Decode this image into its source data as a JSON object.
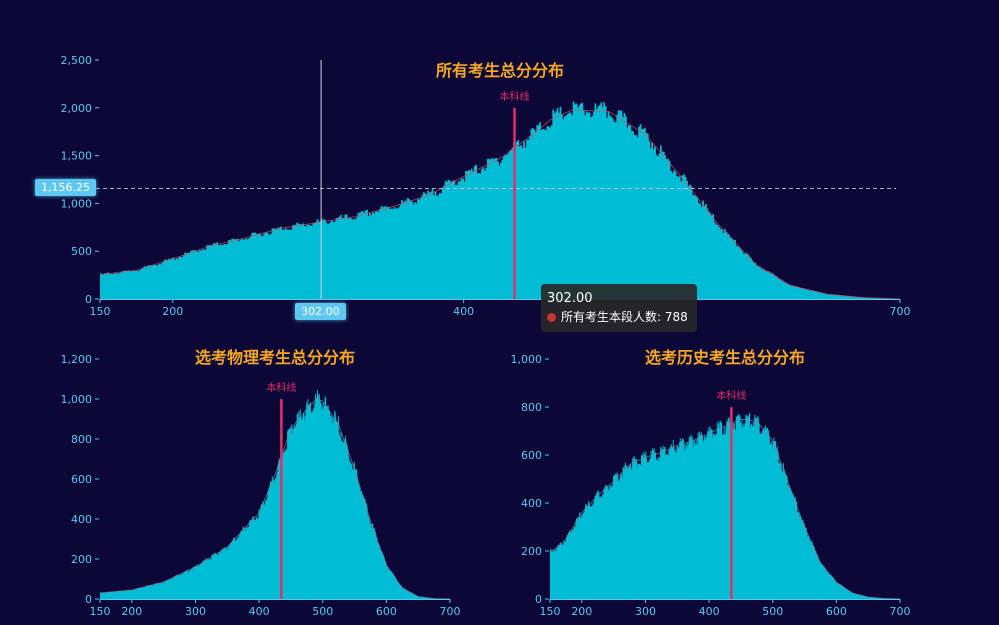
{
  "colors": {
    "background": "#0c0736",
    "fill": "#00bcd4",
    "outline": "#c25a6a",
    "pass_line": "#e0306a",
    "title": "#f5a623",
    "axis": "#58c8f0"
  },
  "chart_data": [
    {
      "type": "area",
      "title": "所有考生总分分布",
      "x_range": [
        150,
        700
      ],
      "xticks": [
        150,
        200,
        400,
        700
      ],
      "xtick_labels": [
        "150",
        "200",
        "400",
        "700"
      ],
      "ylim": [
        0,
        2500
      ],
      "yticks": [
        0,
        500,
        1000,
        1500,
        2000,
        2500
      ],
      "ytick_labels": [
        "0",
        "500",
        "1,000",
        "1,500",
        "2,000",
        "2,500"
      ],
      "x": [
        150,
        175,
        200,
        225,
        250,
        275,
        300,
        325,
        350,
        375,
        400,
        425,
        450,
        460,
        475,
        500,
        525,
        550,
        575,
        600,
        625,
        650,
        675,
        700
      ],
      "values": [
        255,
        300,
        420,
        550,
        640,
        740,
        800,
        860,
        960,
        1080,
        1280,
        1470,
        1750,
        1880,
        1980,
        1960,
        1720,
        1270,
        780,
        370,
        140,
        50,
        15,
        0
      ],
      "pass_line": {
        "x": 435,
        "height": 2000,
        "label": "本科线"
      },
      "crosshair": {
        "x": 302,
        "y": 1156.25,
        "x_label": "302.00",
        "y_label": "1,156.25"
      },
      "tooltip": {
        "title": "302.00",
        "series": "所有考生本段人数",
        "value": "788"
      }
    },
    {
      "type": "bar",
      "title": "选考物理考生总分分布",
      "x_range": [
        150,
        700
      ],
      "xticks": [
        150,
        200,
        300,
        400,
        500,
        600,
        700
      ],
      "xtick_labels": [
        "150",
        "200",
        "300",
        "400",
        "500",
        "600",
        "700"
      ],
      "ylim": [
        0,
        1200
      ],
      "yticks": [
        0,
        200,
        400,
        600,
        800,
        1000,
        1200
      ],
      "ytick_labels": [
        "0",
        "200",
        "400",
        "600",
        "800",
        "1,000",
        "1,200"
      ],
      "x": [
        150,
        200,
        250,
        300,
        350,
        400,
        425,
        450,
        475,
        490,
        500,
        525,
        550,
        575,
        600,
        625,
        650,
        675,
        700
      ],
      "values": [
        30,
        45,
        85,
        160,
        260,
        430,
        620,
        850,
        950,
        1000,
        990,
        870,
        650,
        390,
        170,
        55,
        12,
        2,
        0
      ],
      "pass_line": {
        "x": 435,
        "height": 1000,
        "label": "本科线"
      }
    },
    {
      "type": "bar",
      "title": "选考历史考生总分分布",
      "x_range": [
        150,
        700
      ],
      "xticks": [
        150,
        200,
        300,
        400,
        500,
        600,
        700
      ],
      "xtick_labels": [
        "150",
        "200",
        "300",
        "400",
        "500",
        "600",
        "700"
      ],
      "ylim": [
        0,
        1000
      ],
      "yticks": [
        0,
        200,
        400,
        600,
        800,
        1000
      ],
      "ytick_labels": [
        "0",
        "200",
        "400",
        "600",
        "800",
        "1,000"
      ],
      "x": [
        150,
        160,
        175,
        200,
        225,
        250,
        275,
        300,
        325,
        350,
        375,
        400,
        425,
        450,
        475,
        500,
        525,
        550,
        575,
        600,
        625,
        650,
        675,
        700
      ],
      "values": [
        200,
        210,
        250,
        360,
        430,
        490,
        560,
        590,
        610,
        640,
        660,
        690,
        720,
        750,
        740,
        660,
        480,
        300,
        150,
        70,
        25,
        8,
        2,
        0
      ],
      "pass_line": {
        "x": 435,
        "height": 800,
        "label": "本科线"
      }
    }
  ]
}
